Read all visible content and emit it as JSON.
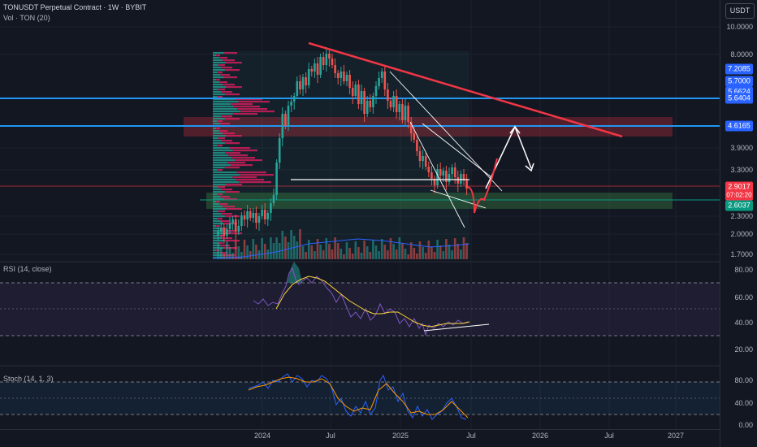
{
  "header": {
    "title": "TONUSDT Perpetual Contract · 1W · BYBIT",
    "vol_label": "Vol · TON (20)"
  },
  "currency_button": "USDT",
  "price_axis": {
    "ticks": [
      "10.0000",
      "8.0000",
      "3.9000",
      "3.3000",
      "2.3000",
      "2.0000",
      "1.7000"
    ],
    "tags": [
      {
        "label": "7.2085",
        "color": "#2962ff"
      },
      {
        "label": "5.7000",
        "color": "#2962ff"
      },
      {
        "label": "5.6624",
        "color": "#2962ff"
      },
      {
        "label": "5.6404",
        "color": "#2962ff"
      },
      {
        "label": "4.6165",
        "color": "#2962ff"
      },
      {
        "label": "2.9017",
        "color": "#f23645"
      },
      {
        "label": "07:02:20",
        "color": "#f23645"
      },
      {
        "label": "2.6037",
        "color": "#089981"
      }
    ]
  },
  "rsi": {
    "label": "RSI (14, close)",
    "ticks": [
      "80.00",
      "60.00",
      "40.00",
      "20.00"
    ]
  },
  "stoch": {
    "label": "Stoch (14, 1, 3)",
    "ticks": [
      "80.00",
      "40.00",
      "0.00"
    ]
  },
  "time_axis": [
    "2024",
    "Jul",
    "2025",
    "Jul",
    "2026",
    "Jul",
    "2027"
  ],
  "colors": {
    "background": "#131722",
    "bull": "#26a69a",
    "bear": "#ef5350",
    "blue_line": "#2196f3",
    "trendline": "#f23645",
    "rsi_line": "#7e57c2",
    "rsi_ma": "#fdd835"
  }
}
